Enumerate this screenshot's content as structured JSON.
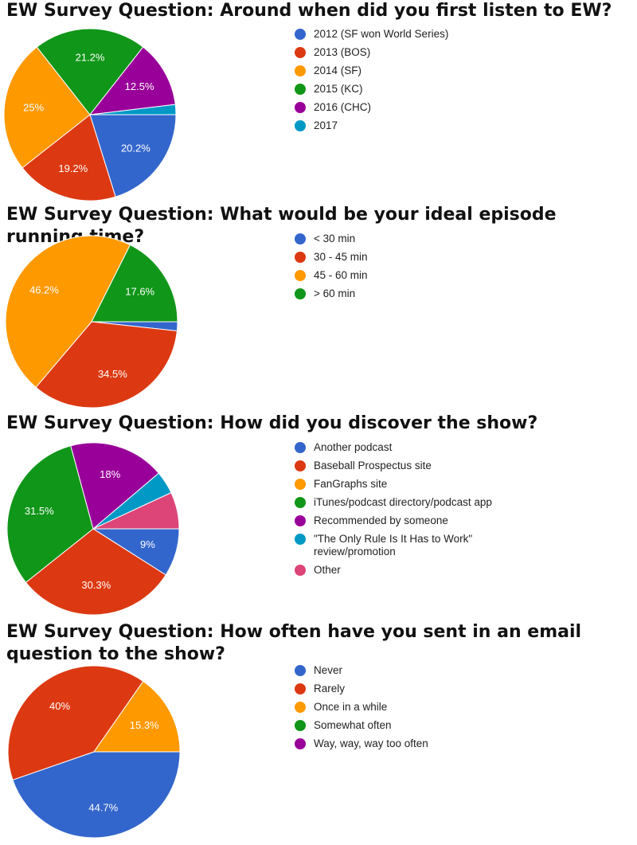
{
  "chart_data": [
    {
      "type": "pie",
      "title": "EW Survey Question: Around when did you first listen to EW?",
      "legend_position": "right",
      "slices": [
        {
          "label": "2012 (SF won World Series)",
          "value": 20.2,
          "color": "#3366cc",
          "display": "20.2%"
        },
        {
          "label": "2013 (BOS)",
          "value": 19.2,
          "color": "#dc3912",
          "display": "19.2%"
        },
        {
          "label": "2014 (SF)",
          "value": 25.0,
          "color": "#ff9900",
          "display": "25%"
        },
        {
          "label": "2015 (KC)",
          "value": 21.2,
          "color": "#109618",
          "display": "21.2%"
        },
        {
          "label": "2016 (CHC)",
          "value": 12.5,
          "color": "#990099",
          "display": "12.5%"
        },
        {
          "label": "2017",
          "value": 1.9,
          "color": "#0099c6",
          "display": ""
        }
      ]
    },
    {
      "type": "pie",
      "title": "EW Survey Question: What would be your ideal episode running time?",
      "legend_position": "right",
      "slices": [
        {
          "label": "< 30 min",
          "value": 1.7,
          "color": "#3366cc",
          "display": ""
        },
        {
          "label": "30 - 45 min",
          "value": 34.5,
          "color": "#dc3912",
          "display": "34.5%"
        },
        {
          "label": "45 - 60 min",
          "value": 46.2,
          "color": "#ff9900",
          "display": "46.2%"
        },
        {
          "label": "> 60 min",
          "value": 17.6,
          "color": "#109618",
          "display": "17.6%"
        }
      ]
    },
    {
      "type": "pie",
      "title": "EW Survey Question: How did you discover the show?",
      "legend_position": "right",
      "slices": [
        {
          "label": "Another podcast",
          "value": 9.0,
          "color": "#3366cc",
          "display": "9%"
        },
        {
          "label": "Baseball Prospectus site",
          "value": 30.3,
          "color": "#dc3912",
          "display": "30.3%"
        },
        {
          "label": "FanGraphs site",
          "value": 0.0,
          "color": "#ff9900",
          "display": ""
        },
        {
          "label": "iTunes/podcast directory/podcast app",
          "value": 31.5,
          "color": "#109618",
          "display": "31.5%"
        },
        {
          "label": "Recommended by someone",
          "value": 18.0,
          "color": "#990099",
          "display": "18%"
        },
        {
          "label": "\"The Only Rule Is It Has to Work\" review/promotion",
          "value": 4.3,
          "color": "#0099c6",
          "display": ""
        },
        {
          "label": "Other",
          "value": 6.9,
          "color": "#dd4477",
          "display": ""
        }
      ]
    },
    {
      "type": "pie",
      "title": "EW Survey Question: How often have you sent in an email question to the show?",
      "legend_position": "right",
      "slices": [
        {
          "label": "Never",
          "value": 44.7,
          "color": "#3366cc",
          "display": "44.7%"
        },
        {
          "label": "Rarely",
          "value": 40.0,
          "color": "#dc3912",
          "display": "40%"
        },
        {
          "label": "Once in a while",
          "value": 15.3,
          "color": "#ff9900",
          "display": "15.3%"
        },
        {
          "label": "Somewhat often",
          "value": 0.0,
          "color": "#109618",
          "display": ""
        },
        {
          "label": "Way, way, way too often",
          "value": 0.0,
          "color": "#990099",
          "display": ""
        }
      ]
    }
  ]
}
